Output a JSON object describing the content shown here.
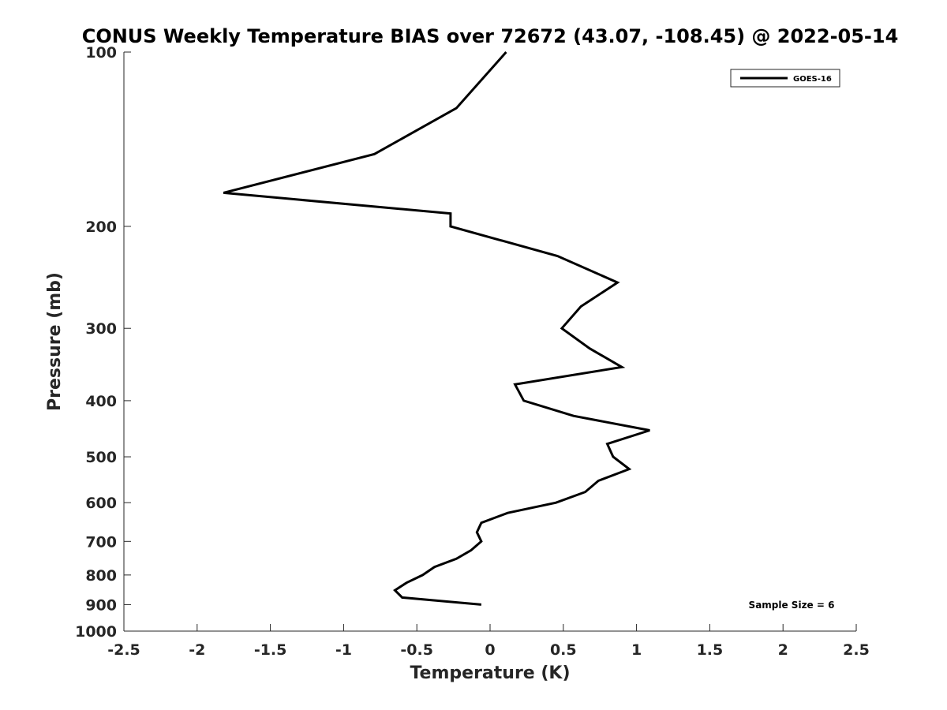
{
  "chart_data": {
    "type": "line",
    "title": "CONUS Weekly Temperature BIAS over 72672 (43.07, -108.45) @ 2022-05-14",
    "xlabel": "Temperature (K)",
    "ylabel": "Pressure (mb)",
    "xlim": [
      -2.5,
      2.5
    ],
    "ylim": [
      1000,
      100
    ],
    "y_scale": "log",
    "y_inverted": true,
    "x_ticks": [
      "-2.5",
      "-2",
      "-1.5",
      "-1",
      "-0.5",
      "0",
      "0.5",
      "1",
      "1.5",
      "2",
      "2.5"
    ],
    "y_ticks": [
      "100",
      "200",
      "300",
      "400",
      "500",
      "600",
      "700",
      "800",
      "900",
      "1000"
    ],
    "grid": false,
    "legend_position": "top-right",
    "annotation": "Sample Size = 6",
    "series": [
      {
        "name": "GOES-16",
        "color": "#000000",
        "points": [
          {
            "x": 0.11,
            "y": 100
          },
          {
            "x": -0.23,
            "y": 125
          },
          {
            "x": -0.79,
            "y": 150
          },
          {
            "x": -1.82,
            "y": 175
          },
          {
            "x": -0.27,
            "y": 190
          },
          {
            "x": -0.27,
            "y": 200
          },
          {
            "x": 0.46,
            "y": 225
          },
          {
            "x": 0.87,
            "y": 250
          },
          {
            "x": 0.62,
            "y": 275
          },
          {
            "x": 0.49,
            "y": 300
          },
          {
            "x": 0.68,
            "y": 325
          },
          {
            "x": 0.9,
            "y": 350
          },
          {
            "x": 0.17,
            "y": 375
          },
          {
            "x": 0.23,
            "y": 400
          },
          {
            "x": 0.57,
            "y": 425
          },
          {
            "x": 1.09,
            "y": 450
          },
          {
            "x": 0.8,
            "y": 475
          },
          {
            "x": 0.84,
            "y": 500
          },
          {
            "x": 0.95,
            "y": 525
          },
          {
            "x": 0.74,
            "y": 550
          },
          {
            "x": 0.65,
            "y": 575
          },
          {
            "x": 0.45,
            "y": 600
          },
          {
            "x": 0.12,
            "y": 625
          },
          {
            "x": -0.06,
            "y": 650
          },
          {
            "x": -0.09,
            "y": 675
          },
          {
            "x": -0.06,
            "y": 700
          },
          {
            "x": -0.13,
            "y": 725
          },
          {
            "x": -0.23,
            "y": 750
          },
          {
            "x": -0.38,
            "y": 775
          },
          {
            "x": -0.46,
            "y": 800
          },
          {
            "x": -0.57,
            "y": 825
          },
          {
            "x": -0.65,
            "y": 850
          },
          {
            "x": -0.6,
            "y": 875
          },
          {
            "x": -0.06,
            "y": 900
          }
        ]
      }
    ]
  }
}
